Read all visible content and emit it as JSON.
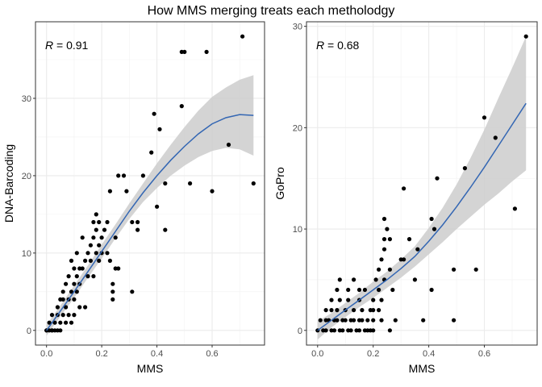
{
  "figure_title": "How MMS merging treats each metholodgy",
  "chart_data": [
    {
      "type": "scatter",
      "xlabel": "MMS",
      "ylabel": "DNA-Barcoding",
      "xlim": [
        -0.04,
        0.79
      ],
      "ylim": [
        -1.9,
        39.9
      ],
      "xticks": [
        0.0,
        0.2,
        0.4,
        0.6
      ],
      "xtick_labels": [
        "0.0",
        "0.2",
        "0.4",
        "0.6"
      ],
      "yticks": [
        0,
        10,
        20,
        30
      ],
      "ytick_labels": [
        "0",
        "10",
        "20",
        "30"
      ],
      "grid": true,
      "annotation": {
        "var": "R",
        "text": " = 0.91"
      },
      "point_color": "#000000",
      "smooth": {
        "color": "#3366b3",
        "band_color": "#cccccc",
        "x": [
          0.0,
          0.05,
          0.1,
          0.15,
          0.2,
          0.25,
          0.3,
          0.35,
          0.4,
          0.45,
          0.5,
          0.55,
          0.6,
          0.65,
          0.7,
          0.75
        ],
        "y": [
          0.0,
          2.5,
          5.0,
          7.6,
          10.2,
          12.8,
          15.4,
          17.8,
          20.0,
          22.0,
          23.8,
          25.4,
          26.7,
          27.5,
          27.9,
          27.8
        ],
        "lower": [
          -0.7,
          1.8,
          4.2,
          6.8,
          9.3,
          11.9,
          14.4,
          16.6,
          18.4,
          20.0,
          21.3,
          22.4,
          23.2,
          23.6,
          23.4,
          22.6
        ],
        "upper": [
          0.7,
          3.2,
          5.8,
          8.4,
          11.1,
          13.7,
          16.4,
          19.0,
          21.6,
          24.0,
          26.3,
          28.4,
          30.2,
          31.4,
          32.4,
          33.0
        ]
      },
      "points": [
        [
          0.0,
          0
        ],
        [
          0.01,
          0
        ],
        [
          0.02,
          0
        ],
        [
          0.03,
          0
        ],
        [
          0.04,
          0
        ],
        [
          0.05,
          0
        ],
        [
          0.0,
          0
        ],
        [
          0.02,
          0
        ],
        [
          0.01,
          1
        ],
        [
          0.03,
          1
        ],
        [
          0.05,
          1
        ],
        [
          0.07,
          1
        ],
        [
          0.09,
          1
        ],
        [
          0.02,
          2
        ],
        [
          0.04,
          2
        ],
        [
          0.06,
          2
        ],
        [
          0.08,
          2
        ],
        [
          0.1,
          2
        ],
        [
          0.04,
          3
        ],
        [
          0.07,
          3
        ],
        [
          0.12,
          3
        ],
        [
          0.14,
          3
        ],
        [
          0.05,
          4
        ],
        [
          0.06,
          4
        ],
        [
          0.08,
          4
        ],
        [
          0.1,
          4
        ],
        [
          0.24,
          4
        ],
        [
          0.06,
          5
        ],
        [
          0.09,
          5
        ],
        [
          0.11,
          5
        ],
        [
          0.24,
          5
        ],
        [
          0.31,
          5
        ],
        [
          0.07,
          6
        ],
        [
          0.1,
          6
        ],
        [
          0.12,
          6
        ],
        [
          0.24,
          6
        ],
        [
          0.08,
          7
        ],
        [
          0.11,
          7
        ],
        [
          0.15,
          7
        ],
        [
          0.17,
          7
        ],
        [
          0.1,
          8
        ],
        [
          0.12,
          8
        ],
        [
          0.13,
          8
        ],
        [
          0.25,
          8
        ],
        [
          0.26,
          8
        ],
        [
          0.09,
          9
        ],
        [
          0.14,
          9
        ],
        [
          0.16,
          9
        ],
        [
          0.19,
          9
        ],
        [
          0.23,
          9
        ],
        [
          0.11,
          10
        ],
        [
          0.15,
          10
        ],
        [
          0.18,
          10
        ],
        [
          0.2,
          10
        ],
        [
          0.22,
          10
        ],
        [
          0.16,
          11
        ],
        [
          0.19,
          11
        ],
        [
          0.13,
          12
        ],
        [
          0.17,
          12
        ],
        [
          0.2,
          12
        ],
        [
          0.25,
          12
        ],
        [
          0.18,
          13
        ],
        [
          0.21,
          13
        ],
        [
          0.33,
          13
        ],
        [
          0.43,
          13
        ],
        [
          0.17,
          14
        ],
        [
          0.19,
          14
        ],
        [
          0.22,
          14
        ],
        [
          0.31,
          14
        ],
        [
          0.33,
          14
        ],
        [
          0.18,
          15
        ],
        [
          0.23,
          18
        ],
        [
          0.29,
          18
        ],
        [
          0.6,
          18
        ],
        [
          0.4,
          16
        ],
        [
          0.43,
          19
        ],
        [
          0.52,
          19
        ],
        [
          0.75,
          19
        ],
        [
          0.26,
          20
        ],
        [
          0.28,
          20
        ],
        [
          0.35,
          20
        ],
        [
          0.38,
          23
        ],
        [
          0.41,
          26
        ],
        [
          0.39,
          28
        ],
        [
          0.49,
          29
        ],
        [
          0.66,
          24
        ],
        [
          0.49,
          36
        ],
        [
          0.5,
          36
        ],
        [
          0.58,
          36
        ],
        [
          0.71,
          38
        ]
      ]
    },
    {
      "type": "scatter",
      "xlabel": "MMS",
      "ylabel": "GoPro",
      "xlim": [
        -0.04,
        0.79
      ],
      "ylim": [
        -1.45,
        30.45
      ],
      "xticks": [
        0.0,
        0.2,
        0.4,
        0.6
      ],
      "xtick_labels": [
        "0.0",
        "0.2",
        "0.4",
        "0.6"
      ],
      "yticks": [
        0,
        10,
        20,
        30
      ],
      "ytick_labels": [
        "0",
        "10",
        "20",
        "30"
      ],
      "grid": true,
      "annotation": {
        "var": "R",
        "text": " = 0.68"
      },
      "point_color": "#000000",
      "smooth": {
        "color": "#3366b3",
        "band_color": "#cccccc",
        "x": [
          0.0,
          0.05,
          0.1,
          0.15,
          0.2,
          0.25,
          0.3,
          0.35,
          0.4,
          0.45,
          0.5,
          0.55,
          0.6,
          0.65,
          0.7,
          0.75
        ],
        "y": [
          0.0,
          1.0,
          2.0,
          3.0,
          4.0,
          5.0,
          6.1,
          7.3,
          8.8,
          10.4,
          12.2,
          14.1,
          16.1,
          18.2,
          20.3,
          22.4
        ],
        "lower": [
          -0.9,
          0.3,
          1.3,
          2.3,
          3.2,
          4.2,
          5.2,
          6.3,
          7.5,
          8.7,
          10.0,
          11.2,
          12.4,
          13.5,
          14.7,
          15.8
        ],
        "upper": [
          0.9,
          1.7,
          2.7,
          3.7,
          4.8,
          5.8,
          7.0,
          8.3,
          10.1,
          12.1,
          14.4,
          17.0,
          19.8,
          22.9,
          25.9,
          29.0
        ]
      },
      "points": [
        [
          0.0,
          0
        ],
        [
          0.02,
          0
        ],
        [
          0.03,
          0
        ],
        [
          0.05,
          0
        ],
        [
          0.06,
          0
        ],
        [
          0.08,
          0
        ],
        [
          0.09,
          0
        ],
        [
          0.11,
          0
        ],
        [
          0.12,
          0
        ],
        [
          0.14,
          0
        ],
        [
          0.15,
          0
        ],
        [
          0.17,
          0
        ],
        [
          0.18,
          0
        ],
        [
          0.19,
          0
        ],
        [
          0.2,
          0
        ],
        [
          0.26,
          0
        ],
        [
          0.01,
          1
        ],
        [
          0.03,
          1
        ],
        [
          0.04,
          1
        ],
        [
          0.06,
          1
        ],
        [
          0.07,
          1
        ],
        [
          0.09,
          1
        ],
        [
          0.1,
          1
        ],
        [
          0.12,
          1
        ],
        [
          0.13,
          1
        ],
        [
          0.15,
          1
        ],
        [
          0.16,
          1
        ],
        [
          0.18,
          1
        ],
        [
          0.2,
          1
        ],
        [
          0.23,
          1
        ],
        [
          0.28,
          1
        ],
        [
          0.38,
          1
        ],
        [
          0.49,
          1
        ],
        [
          0.03,
          2
        ],
        [
          0.05,
          2
        ],
        [
          0.07,
          2
        ],
        [
          0.1,
          2
        ],
        [
          0.13,
          2
        ],
        [
          0.16,
          2
        ],
        [
          0.19,
          2
        ],
        [
          0.2,
          2
        ],
        [
          0.22,
          2
        ],
        [
          0.05,
          3
        ],
        [
          0.08,
          3
        ],
        [
          0.11,
          3
        ],
        [
          0.15,
          3
        ],
        [
          0.2,
          3
        ],
        [
          0.23,
          3
        ],
        [
          0.07,
          4
        ],
        [
          0.11,
          4
        ],
        [
          0.15,
          4
        ],
        [
          0.17,
          4
        ],
        [
          0.22,
          4
        ],
        [
          0.27,
          4
        ],
        [
          0.41,
          4
        ],
        [
          0.08,
          5
        ],
        [
          0.13,
          5
        ],
        [
          0.21,
          5
        ],
        [
          0.24,
          5
        ],
        [
          0.35,
          5
        ],
        [
          0.22,
          6
        ],
        [
          0.26,
          6
        ],
        [
          0.49,
          6
        ],
        [
          0.57,
          6
        ],
        [
          0.23,
          7
        ],
        [
          0.3,
          7
        ],
        [
          0.31,
          7
        ],
        [
          0.24,
          8
        ],
        [
          0.36,
          8
        ],
        [
          0.24,
          9
        ],
        [
          0.26,
          9
        ],
        [
          0.33,
          9
        ],
        [
          0.25,
          10
        ],
        [
          0.42,
          10
        ],
        [
          0.24,
          11
        ],
        [
          0.41,
          11
        ],
        [
          0.31,
          14
        ],
        [
          0.43,
          15
        ],
        [
          0.53,
          16
        ],
        [
          0.71,
          12
        ],
        [
          0.64,
          19
        ],
        [
          0.6,
          21
        ],
        [
          0.75,
          29
        ]
      ]
    }
  ]
}
